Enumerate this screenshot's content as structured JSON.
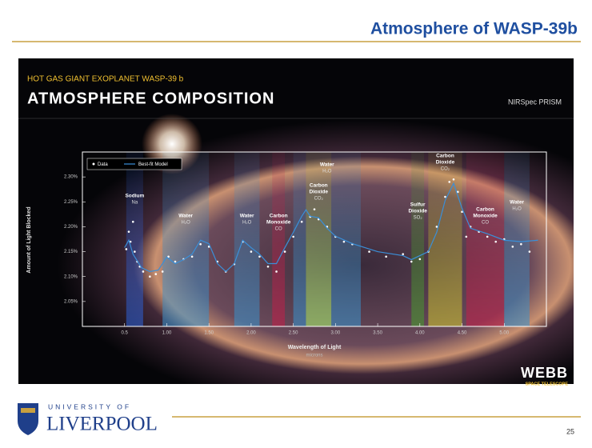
{
  "slide": {
    "title": "Atmosphere of WASP-39b",
    "page_number": "25",
    "logo": {
      "top": "UNIVERSITY OF",
      "bottom": "LIVERPOOL"
    }
  },
  "chart_data": {
    "type": "scatter",
    "kicker": "HOT GAS GIANT EXOPLANET WASP-39 b",
    "title": "ATMOSPHERE COMPOSITION",
    "instrument": "NIRSpec PRISM",
    "ylabel": "Amount of Light Blocked",
    "xlabel": "Wavelength of Light",
    "xunit": "microns",
    "brand": {
      "name": "WEBB",
      "sub": "SPACE TELESCOPE"
    },
    "xlim": [
      0,
      5.5
    ],
    "ylim": [
      2.0,
      2.35
    ],
    "xticks": [
      0.5,
      {
        "value": 1,
        "label": "1.00"
      },
      {
        "value": 1.5,
        "label": "1.50"
      },
      {
        "value": 2,
        "label": "2.00"
      },
      {
        "value": 2.5,
        "label": "2.50"
      },
      {
        "value": 3,
        "label": "3.00"
      },
      {
        "value": 3.5,
        "label": "3.50"
      },
      {
        "value": 4,
        "label": "4.00"
      },
      {
        "value": 4.5,
        "label": "4.50"
      },
      {
        "value": 5,
        "label": "5.00"
      }
    ],
    "yticks": [
      {
        "value": 2.05,
        "label": "2.05%"
      },
      {
        "value": 2.1,
        "label": "2.10%"
      },
      {
        "value": 2.15,
        "label": "2.15%"
      },
      {
        "value": 2.2,
        "label": "2.20%"
      },
      {
        "value": 2.25,
        "label": "2.25%"
      },
      {
        "value": 2.3,
        "label": "2.30%"
      }
    ],
    "features": [
      {
        "label": [
          "Sodium"
        ],
        "formula": "Na",
        "x": [
          0.52,
          0.72
        ],
        "color": "#2f5fd0"
      },
      {
        "label": [
          "Water"
        ],
        "formula": "H₂O",
        "x": [
          0.95,
          1.5
        ],
        "color": "#3a8fc8"
      },
      {
        "label": [
          "Water"
        ],
        "formula": "H₂O",
        "x": [
          1.8,
          2.1
        ],
        "color": "#3a8fc8"
      },
      {
        "label": [
          "Carbon",
          "Monoxide"
        ],
        "formula": "CO",
        "x": [
          2.25,
          2.4
        ],
        "color": "#c0204a"
      },
      {
        "label": [
          "Water"
        ],
        "formula": "H₂O",
        "x": [
          2.5,
          3.3
        ],
        "color": "#3a8fc8"
      },
      {
        "label": [
          "Carbon",
          "Dioxide"
        ],
        "formula": "CO₂",
        "x": [
          2.65,
          2.95
        ],
        "color": "#b8d040"
      },
      {
        "label": [
          "Sulfur",
          "Dioxide"
        ],
        "formula": "SO₂",
        "x": [
          3.9,
          4.05
        ],
        "color": "#4a9a30"
      },
      {
        "label": [
          "Carbon",
          "Dioxide"
        ],
        "formula": "CO₂",
        "x": [
          4.1,
          4.5
        ],
        "color": "#c8c030"
      },
      {
        "label": [
          "Carbon",
          "Monoxide"
        ],
        "formula": "CO",
        "x": [
          4.55,
          5.0
        ],
        "color": "#c0204a"
      },
      {
        "label": [
          "Water"
        ],
        "formula": "H₂O",
        "x": [
          5.0,
          5.3
        ],
        "color": "#3a8fc8"
      }
    ],
    "series": [
      {
        "name": "Data",
        "type": "scatter",
        "color": "#ffffff",
        "x": [
          0.52,
          0.55,
          0.57,
          0.6,
          0.62,
          0.65,
          0.68,
          0.72,
          0.8,
          0.87,
          0.95,
          1.02,
          1.1,
          1.2,
          1.3,
          1.4,
          1.5,
          1.6,
          1.7,
          1.8,
          1.9,
          2.0,
          2.1,
          2.2,
          2.3,
          2.4,
          2.5,
          2.6,
          2.7,
          2.75,
          2.8,
          2.9,
          3.0,
          3.1,
          3.2,
          3.4,
          3.6,
          3.8,
          3.9,
          4.0,
          4.1,
          4.2,
          4.3,
          4.35,
          4.4,
          4.45,
          4.5,
          4.55,
          4.6,
          4.7,
          4.8,
          4.9,
          5.0,
          5.1,
          5.2,
          5.3
        ],
        "values": [
          2.155,
          2.19,
          2.17,
          2.21,
          2.15,
          2.13,
          2.12,
          2.11,
          2.1,
          2.105,
          2.11,
          2.14,
          2.13,
          2.135,
          2.14,
          2.165,
          2.16,
          2.13,
          2.11,
          2.125,
          2.17,
          2.15,
          2.14,
          2.12,
          2.11,
          2.15,
          2.18,
          2.21,
          2.22,
          2.235,
          2.215,
          2.2,
          2.18,
          2.17,
          2.165,
          2.15,
          2.14,
          2.145,
          2.13,
          2.135,
          2.15,
          2.2,
          2.26,
          2.29,
          2.295,
          2.27,
          2.23,
          2.18,
          2.2,
          2.19,
          2.18,
          2.17,
          2.175,
          2.16,
          2.165,
          2.15
        ]
      },
      {
        "name": "Best-fit Model",
        "type": "line",
        "color": "#3a8fd8",
        "x": [
          0.5,
          0.55,
          0.6,
          0.7,
          0.8,
          0.9,
          1.0,
          1.1,
          1.2,
          1.3,
          1.4,
          1.5,
          1.6,
          1.7,
          1.8,
          1.9,
          2.0,
          2.1,
          2.2,
          2.3,
          2.4,
          2.5,
          2.6,
          2.65,
          2.7,
          2.8,
          2.9,
          3.0,
          3.2,
          3.5,
          3.8,
          3.9,
          4.0,
          4.1,
          4.2,
          4.3,
          4.4,
          4.5,
          4.6,
          4.8,
          5.0,
          5.2,
          5.4
        ],
        "values": [
          2.158,
          2.173,
          2.145,
          2.118,
          2.11,
          2.113,
          2.139,
          2.126,
          2.134,
          2.145,
          2.173,
          2.166,
          2.126,
          2.11,
          2.126,
          2.173,
          2.158,
          2.145,
          2.126,
          2.126,
          2.158,
          2.189,
          2.221,
          2.234,
          2.221,
          2.218,
          2.197,
          2.181,
          2.166,
          2.15,
          2.142,
          2.134,
          2.142,
          2.15,
          2.189,
          2.253,
          2.287,
          2.237,
          2.197,
          2.186,
          2.173,
          2.17,
          2.173
        ]
      }
    ]
  }
}
